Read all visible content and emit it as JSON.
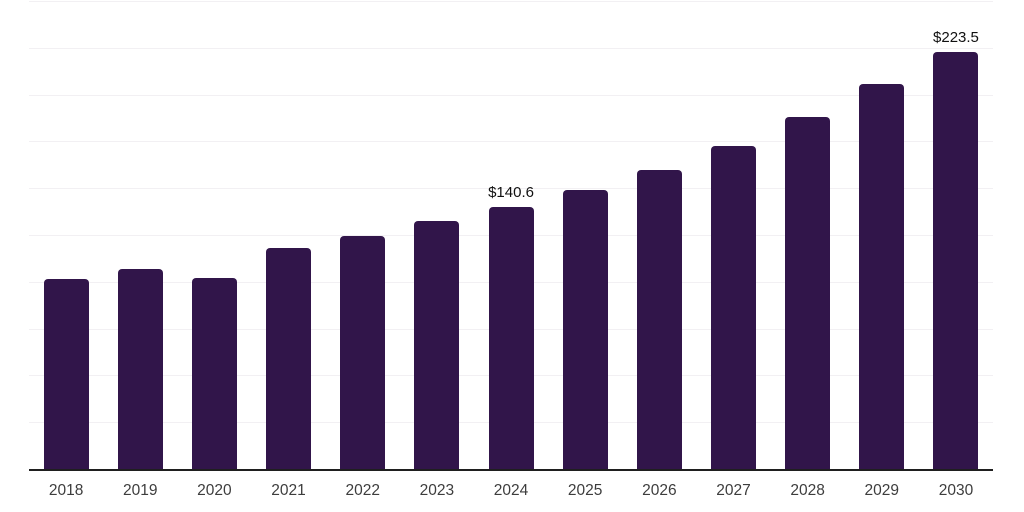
{
  "chart_data": {
    "type": "bar",
    "title": "",
    "xlabel": "",
    "ylabel": "",
    "categories": [
      "2018",
      "2019",
      "2020",
      "2021",
      "2022",
      "2023",
      "2024",
      "2025",
      "2026",
      "2027",
      "2028",
      "2029",
      "2030"
    ],
    "values": [
      102.3,
      107.2,
      102.5,
      118.4,
      125.2,
      132.8,
      140.6,
      149.8,
      160.1,
      173.2,
      188.7,
      206.2,
      223.5
    ],
    "annotations": [
      {
        "category": "2024",
        "label": "$140.6"
      },
      {
        "category": "2030",
        "label": "$223.5"
      }
    ],
    "ylim": [
      0,
      250
    ],
    "grid_step": 25,
    "grid": "horizontal",
    "y_tick_labels": "none",
    "legend_position": "none",
    "colors": {
      "bar": "#31154a",
      "gridline": "#f2f0f3",
      "axis_line": "#1f1f1f",
      "tick_label": "#3d3d3d",
      "data_label": "#111111",
      "background": "#ffffff"
    }
  }
}
